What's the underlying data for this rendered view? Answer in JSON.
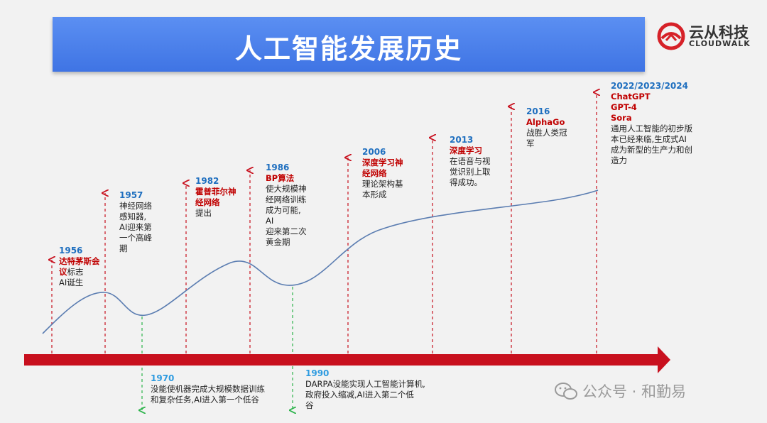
{
  "header": {
    "title": "人工智能发展历史"
  },
  "logo": {
    "cn": "云从科技",
    "en": "CLOUDWALK"
  },
  "events": [
    {
      "year": "1956",
      "highlight": "达特茅斯会议",
      "text_after": "标志",
      "lines": [
        "AI诞生"
      ]
    },
    {
      "year": "1957",
      "highlight": "",
      "text_after": "",
      "lines": [
        "神经网络",
        "感知器,",
        "AI迎来第",
        "一个高峰",
        "期"
      ]
    },
    {
      "year": "1982",
      "highlight": "霍普菲尔神经网络",
      "text_after": "",
      "lines": [
        "提出"
      ]
    },
    {
      "year": "1986",
      "highlight": "BP算法",
      "text_after": "",
      "lines": [
        "使大规模神",
        "经网络训练",
        "成为可能,",
        "AI",
        "迎来第二次",
        "黄金期"
      ]
    },
    {
      "year": "2006",
      "highlight": "深度学习神经网络",
      "text_after": "",
      "lines": [
        "理论架构基",
        "本形成"
      ]
    },
    {
      "year": "2013",
      "highlight": "深度学习",
      "text_after": "",
      "lines": [
        "在语音与视",
        "觉识别上取",
        "得成功。"
      ]
    },
    {
      "year": "2016",
      "highlight": "AlphaGo",
      "text_after": "",
      "lines": [
        "战胜人类冠",
        "军"
      ]
    },
    {
      "year": "2022/2023/2024",
      "highlight_lines": [
        "ChatGPT",
        "GPT-4",
        "Sora"
      ],
      "lines": [
        "通用人工智能的初步版",
        "本已经来临,生成式AI",
        "成为新型的生产力和创",
        "造力"
      ]
    }
  ],
  "lows": [
    {
      "year": "1970",
      "lines": [
        "没能使机器完成大规模数据训练",
        "和复杂任务,AI进入第一个低谷"
      ]
    },
    {
      "year": "1990",
      "lines": [
        "DARPA没能实现人工智能计算机,",
        "政府投入缩减,AI进入第二个低",
        "谷"
      ]
    }
  ],
  "watermark": {
    "text": "公众号 · 和勤易",
    "icon": "wechat-icon"
  },
  "colors": {
    "accent_red": "#c00000",
    "year_blue": "#1f6fbf",
    "title_blue": "#4a7fe8",
    "arrow_red": "#c8101e",
    "low_green": "#2bb34a",
    "curve": "#5b7db1"
  }
}
